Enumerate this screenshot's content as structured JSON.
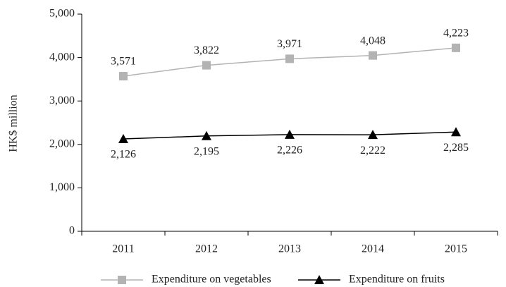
{
  "chart_data": {
    "type": "line",
    "ylabel": "HK$ million",
    "categories": [
      "2011",
      "2012",
      "2013",
      "2014",
      "2015"
    ],
    "series": [
      {
        "name": "Expenditure on vegetables",
        "color": "#b3b3b3",
        "marker": "square",
        "values": [
          3571,
          3822,
          3971,
          4048,
          4223
        ],
        "value_labels": [
          "3,571",
          "3,822",
          "3,971",
          "4,048",
          "4,223"
        ]
      },
      {
        "name": "Expenditure on fruits",
        "color": "#000000",
        "marker": "triangle",
        "values": [
          2126,
          2195,
          2226,
          2222,
          2285
        ],
        "value_labels": [
          "2,126",
          "2,195",
          "2,226",
          "2,222",
          "2,285"
        ]
      }
    ],
    "ylim": [
      0,
      5000
    ],
    "yticks": [
      0,
      {
        "value": 1000,
        "label": "1,000"
      },
      {
        "value": 2000,
        "label": "2,000"
      },
      {
        "value": 3000,
        "label": "3,000"
      },
      {
        "value": 4000,
        "label": "4,000"
      },
      {
        "value": 5000,
        "label": "5,000"
      }
    ],
    "legend": "bottom",
    "grid": false
  }
}
